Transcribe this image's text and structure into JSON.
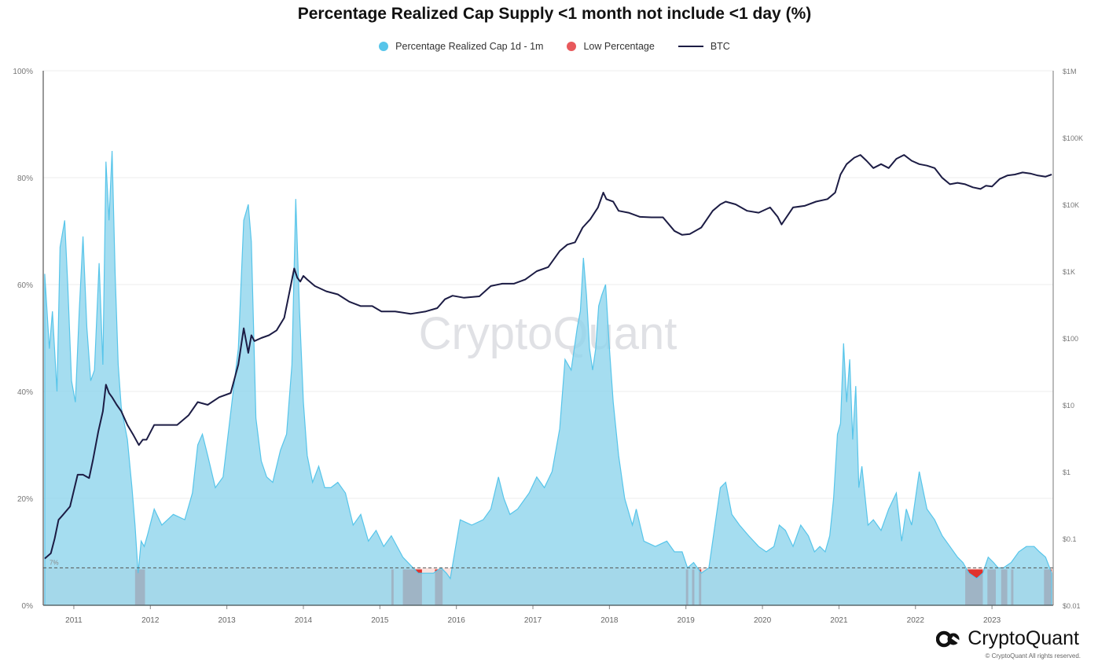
{
  "title": "Percentage Realized Cap Supply <1 month not include <1 day (%)",
  "legend": [
    {
      "label": "Percentage Realized Cap 1d - 1m",
      "color": "#57c5ea",
      "kind": "dot"
    },
    {
      "label": "Low Percentage",
      "color": "#e8595c",
      "kind": "dot"
    },
    {
      "label": "BTC",
      "color": "#1c1c44",
      "kind": "line"
    }
  ],
  "watermark": "CryptoQuant",
  "brand": {
    "name": "CryptoQuant",
    "copyright": "© CryptoQuant All rights reserved."
  },
  "threshold": {
    "label": "7%",
    "value": 7
  },
  "colors": {
    "area_fill": "#8fd5ec",
    "area_stroke": "#57c5ea",
    "low": "#e0322c",
    "btc": "#1c1c44",
    "low_band": "#fbe3df"
  },
  "chart_data": {
    "type": "area",
    "x_ticks": [
      "2011",
      "2012",
      "2013",
      "2014",
      "2015",
      "2016",
      "2017",
      "2018",
      "2019",
      "2020",
      "2021",
      "2022",
      "2023"
    ],
    "x_range": [
      2010.6,
      2023.8
    ],
    "left_axis": {
      "ticks": [
        "0%",
        "20%",
        "40%",
        "60%",
        "80%",
        "100%"
      ],
      "range": [
        0,
        100
      ]
    },
    "right_axis": {
      "ticks": [
        "$0.01",
        "$0.1",
        "$1",
        "$10",
        "$100",
        "$1K",
        "$10K",
        "$100K",
        "$1M"
      ],
      "scale": "log",
      "range": [
        0.01,
        1000000
      ]
    },
    "grid": true,
    "legend_position": "top",
    "series": [
      {
        "name": "Percentage Realized Cap 1d - 1m",
        "x": [
          2010.62,
          2010.68,
          2010.72,
          2010.78,
          2010.82,
          2010.88,
          2010.92,
          2010.97,
          2011.02,
          2011.07,
          2011.12,
          2011.17,
          2011.22,
          2011.27,
          2011.33,
          2011.38,
          2011.42,
          2011.46,
          2011.5,
          2011.54,
          2011.58,
          2011.62,
          2011.7,
          2011.76,
          2011.8,
          2011.84,
          2011.88,
          2011.92,
          2011.96,
          2012.05,
          2012.15,
          2012.3,
          2012.45,
          2012.55,
          2012.62,
          2012.68,
          2012.75,
          2012.85,
          2012.95,
          2013.05,
          2013.15,
          2013.22,
          2013.28,
          2013.32,
          2013.38,
          2013.45,
          2013.52,
          2013.6,
          2013.7,
          2013.78,
          2013.85,
          2013.9,
          2013.95,
          2014.0,
          2014.05,
          2014.12,
          2014.2,
          2014.28,
          2014.36,
          2014.45,
          2014.55,
          2014.65,
          2014.75,
          2014.85,
          2014.95,
          2015.05,
          2015.15,
          2015.3,
          2015.5,
          2015.7,
          2015.8,
          2015.87,
          2015.92,
          2016.05,
          2016.2,
          2016.35,
          2016.45,
          2016.55,
          2016.62,
          2016.7,
          2016.8,
          2016.95,
          2017.05,
          2017.15,
          2017.25,
          2017.35,
          2017.42,
          2017.5,
          2017.58,
          2017.62,
          2017.66,
          2017.7,
          2017.74,
          2017.78,
          2017.82,
          2017.86,
          2017.9,
          2017.95,
          2018.0,
          2018.05,
          2018.12,
          2018.2,
          2018.3,
          2018.35,
          2018.45,
          2018.6,
          2018.75,
          2018.85,
          2018.95,
          2019.02,
          2019.1,
          2019.2,
          2019.3,
          2019.38,
          2019.45,
          2019.52,
          2019.6,
          2019.7,
          2019.82,
          2019.95,
          2020.05,
          2020.15,
          2020.22,
          2020.3,
          2020.4,
          2020.5,
          2020.6,
          2020.68,
          2020.75,
          2020.82,
          2020.88,
          2020.93,
          2020.98,
          2021.02,
          2021.06,
          2021.1,
          2021.14,
          2021.18,
          2021.22,
          2021.26,
          2021.3,
          2021.38,
          2021.45,
          2021.55,
          2021.65,
          2021.75,
          2021.82,
          2021.88,
          2021.95,
          2022.05,
          2022.15,
          2022.25,
          2022.35,
          2022.45,
          2022.55,
          2022.62,
          2022.7,
          2022.8,
          2022.88,
          2022.95,
          2023.02,
          2023.08,
          2023.15,
          2023.25,
          2023.35,
          2023.45,
          2023.55,
          2023.62,
          2023.7,
          2023.78
        ],
        "values": [
          62,
          48,
          55,
          40,
          67,
          72,
          60,
          42,
          38,
          55,
          69,
          52,
          42,
          44,
          64,
          45,
          83,
          72,
          85,
          62,
          45,
          37,
          31,
          22,
          15,
          6,
          12,
          11,
          13,
          18,
          15,
          17,
          16,
          21,
          30,
          32,
          28,
          22,
          24,
          36,
          48,
          72,
          75,
          68,
          35,
          27,
          24,
          23,
          29,
          32,
          45,
          76,
          55,
          38,
          28,
          23,
          26,
          22,
          22,
          23,
          21,
          15,
          17,
          12,
          14,
          11,
          13,
          9,
          6,
          6,
          7,
          6,
          5,
          16,
          15,
          16,
          18,
          24,
          20,
          17,
          18,
          21,
          24,
          22,
          25,
          33,
          46,
          44,
          52,
          55,
          65,
          58,
          48,
          44,
          48,
          56,
          58,
          60,
          48,
          38,
          28,
          20,
          15,
          18,
          12,
          11,
          12,
          10,
          10,
          7,
          8,
          6,
          7,
          15,
          22,
          23,
          17,
          15,
          13,
          11,
          10,
          11,
          15,
          14,
          11,
          15,
          13,
          10,
          11,
          10,
          13,
          20,
          32,
          34,
          49,
          38,
          46,
          31,
          41,
          22,
          26,
          15,
          16,
          14,
          18,
          21,
          12,
          18,
          15,
          25,
          18,
          16,
          13,
          11,
          9,
          8,
          6,
          5,
          6,
          9,
          8,
          7,
          7,
          8,
          10,
          11,
          11,
          10,
          9,
          6
        ],
        "low_ranges": [
          [
            2011.8,
            2011.93
          ],
          [
            2015.15,
            2015.18
          ],
          [
            2015.3,
            2015.55
          ],
          [
            2015.72,
            2015.82
          ],
          [
            2019.0,
            2019.03
          ],
          [
            2019.08,
            2019.11
          ],
          [
            2019.17,
            2019.2
          ],
          [
            2022.65,
            2022.88
          ],
          [
            2022.94,
            2023.05
          ],
          [
            2023.12,
            2023.2
          ],
          [
            2023.25,
            2023.28
          ],
          [
            2023.68,
            2023.78
          ]
        ]
      },
      {
        "name": "BTC",
        "scale": "log",
        "x": [
          2010.62,
          2010.7,
          2010.75,
          2010.8,
          2010.85,
          2010.95,
          2011.05,
          2011.12,
          2011.2,
          2011.25,
          2011.32,
          2011.38,
          2011.42,
          2011.46,
          2011.5,
          2011.56,
          2011.62,
          2011.7,
          2011.78,
          2011.85,
          2011.9,
          2011.95,
          2012.05,
          2012.2,
          2012.35,
          2012.5,
          2012.62,
          2012.75,
          2012.9,
          2013.05,
          2013.15,
          2013.22,
          2013.28,
          2013.32,
          2013.36,
          2013.45,
          2013.55,
          2013.65,
          2013.75,
          2013.82,
          2013.88,
          2013.92,
          2013.96,
          2014.0,
          2014.05,
          2014.15,
          2014.3,
          2014.45,
          2014.6,
          2014.75,
          2014.9,
          2015.02,
          2015.2,
          2015.4,
          2015.6,
          2015.75,
          2015.85,
          2015.95,
          2016.1,
          2016.3,
          2016.45,
          2016.6,
          2016.75,
          2016.9,
          2017.05,
          2017.2,
          2017.35,
          2017.45,
          2017.55,
          2017.65,
          2017.75,
          2017.85,
          2017.92,
          2017.96,
          2018.05,
          2018.12,
          2018.25,
          2018.4,
          2018.55,
          2018.7,
          2018.85,
          2018.95,
          2019.05,
          2019.2,
          2019.35,
          2019.45,
          2019.52,
          2019.65,
          2019.8,
          2019.95,
          2020.1,
          2020.2,
          2020.25,
          2020.4,
          2020.55,
          2020.7,
          2020.85,
          2020.95,
          2021.02,
          2021.1,
          2021.2,
          2021.28,
          2021.36,
          2021.45,
          2021.55,
          2021.65,
          2021.75,
          2021.85,
          2021.95,
          2022.05,
          2022.15,
          2022.25,
          2022.35,
          2022.45,
          2022.55,
          2022.65,
          2022.75,
          2022.85,
          2022.92,
          2023.0,
          2023.1,
          2023.2,
          2023.3,
          2023.4,
          2023.5,
          2023.6,
          2023.7,
          2023.78
        ],
        "values": [
          0.05,
          0.06,
          0.1,
          0.19,
          0.22,
          0.3,
          0.9,
          0.9,
          0.8,
          1.5,
          4,
          8,
          20,
          15,
          13,
          10,
          8,
          5,
          3.5,
          2.5,
          3,
          3,
          5,
          5,
          5,
          7,
          11,
          10,
          13,
          15,
          40,
          140,
          60,
          110,
          90,
          100,
          110,
          130,
          200,
          500,
          1100,
          800,
          700,
          850,
          750,
          600,
          500,
          450,
          350,
          300,
          300,
          250,
          250,
          230,
          250,
          280,
          380,
          430,
          400,
          420,
          600,
          650,
          650,
          750,
          1000,
          1150,
          2000,
          2500,
          2700,
          4500,
          6000,
          9000,
          15000,
          12000,
          11000,
          8000,
          7500,
          6500,
          6400,
          6400,
          4000,
          3500,
          3600,
          4500,
          8000,
          10000,
          11000,
          10000,
          8000,
          7500,
          9000,
          6500,
          5000,
          9000,
          9500,
          11000,
          12000,
          15000,
          28000,
          40000,
          50000,
          55000,
          45000,
          35000,
          40000,
          35000,
          48000,
          55000,
          45000,
          40000,
          38000,
          35000,
          25000,
          20000,
          21000,
          20000,
          18000,
          17000,
          19000,
          18500,
          24000,
          27000,
          28000,
          30000,
          29000,
          27000,
          26000,
          28000
        ]
      }
    ]
  }
}
